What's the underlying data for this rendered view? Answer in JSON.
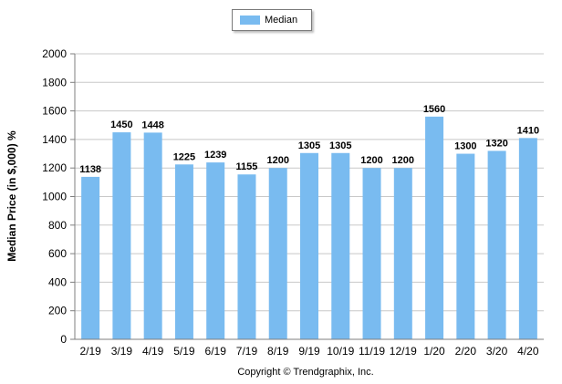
{
  "chart_data": {
    "type": "bar",
    "categories": [
      "2/19",
      "3/19",
      "4/19",
      "5/19",
      "6/19",
      "7/19",
      "8/19",
      "9/19",
      "10/19",
      "11/19",
      "12/19",
      "1/20",
      "2/20",
      "3/20",
      "4/20"
    ],
    "series": [
      {
        "name": "Median",
        "values": [
          1138,
          1450,
          1448,
          1225,
          1239,
          1155,
          1200,
          1305,
          1305,
          1200,
          1200,
          1560,
          1300,
          1320,
          1410
        ]
      }
    ],
    "title": "",
    "xlabel": "",
    "ylabel": "Median Price (in $,000) %",
    "ylim": [
      0,
      2000
    ],
    "yticks": [
      0,
      200,
      400,
      600,
      800,
      1000,
      1200,
      1400,
      1600,
      1800,
      2000
    ],
    "grid": "horizontal",
    "legend_position": "top-center",
    "data_labels": true,
    "colors": {
      "bar": "#79bbf0",
      "grid": "#c8c8c8",
      "axis": "#7f7f7f"
    }
  },
  "footer": {
    "copyright": "Copyright © Trendgraphix, Inc."
  }
}
